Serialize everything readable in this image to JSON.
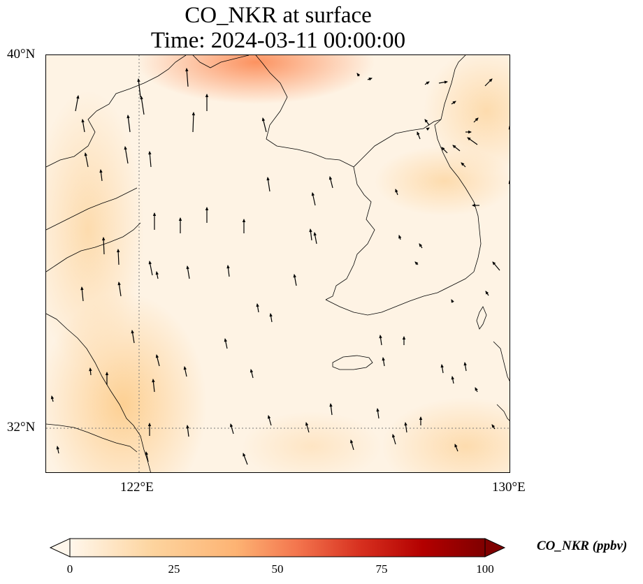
{
  "title": {
    "line1": "CO_NKR at surface",
    "line2": "Time: 2024-03-11 00:00:00"
  },
  "map": {
    "lat_range": [
      31,
      40
    ],
    "lon_range": [
      120,
      130
    ],
    "lat_labels": [
      "40°N",
      "32°N"
    ],
    "lon_labels": [
      "122°E",
      "130°E"
    ],
    "gridline_style": "dotted",
    "features": [
      "coastlines",
      "wind-vectors",
      "concentration-field"
    ]
  },
  "colorbar": {
    "label": "CO_NKR (ppbv)",
    "colormap": "Oranges-to-dark-red",
    "colors": [
      "#fff7ec",
      "#fdd49e",
      "#fc8d59",
      "#d7301f",
      "#b30000",
      "#7f0000"
    ],
    "ticks": [
      "0",
      "25",
      "50",
      "75",
      "100"
    ],
    "range": [
      0,
      100
    ],
    "extend": "both"
  }
}
